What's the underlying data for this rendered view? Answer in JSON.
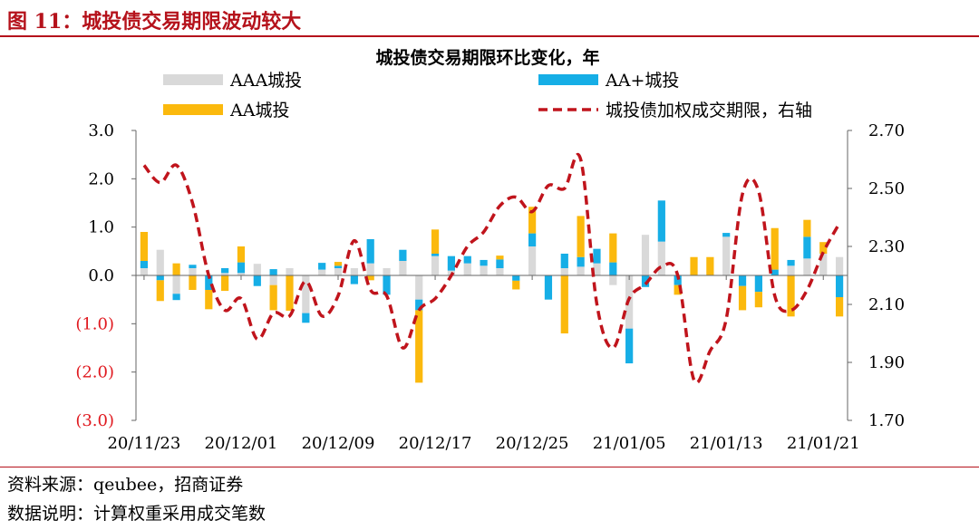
{
  "figure_title": "图 11：城投债交易期限波动较大",
  "footer": {
    "source": "资料来源：qeubee，招商证券",
    "note": "数据说明：计算权重采用成交笔数"
  },
  "colors": {
    "title_red": "#b5121b",
    "aaa": "#d9d9d9",
    "aa_plus": "#16aee6",
    "aa": "#fbb90d",
    "line": "#c0141c",
    "negative_tick": "#e0191f"
  },
  "chart_data": {
    "type": "bar",
    "title": "城投债交易期限环比变化，年",
    "stacked": true,
    "legend": {
      "entries": [
        "AAA城投",
        "AA+城投",
        "AA城投",
        "城投债加权成交期限，右轴"
      ],
      "placement": "top"
    },
    "ylim": [
      -3.0,
      3.0
    ],
    "y_ticks": [
      "(3.0)",
      "(2.0)",
      "(1.0)",
      "0.0",
      "1.0",
      "2.0",
      "3.0"
    ],
    "y2lim": [
      1.7,
      2.7
    ],
    "y2_ticks": [
      "1.70",
      "1.90",
      "2.10",
      "2.30",
      "2.50",
      "2.70"
    ],
    "x_tick_labels": [
      "20/11/23",
      "20/12/01",
      "20/12/09",
      "20/12/17",
      "20/12/25",
      "21/01/05",
      "21/01/13",
      "21/01/21"
    ],
    "x_tick_positions": [
      0,
      6,
      12,
      18,
      24,
      30,
      36,
      42
    ],
    "grid": false,
    "n_days": 44,
    "series": [
      {
        "name": "AAA城投",
        "values": [
          0.15,
          0.53,
          -0.38,
          0.15,
          0.0,
          0.05,
          0.05,
          0.24,
          -0.2,
          0.15,
          -0.78,
          0.12,
          0.15,
          0.15,
          0.25,
          0.15,
          0.3,
          -0.5,
          0.4,
          0.1,
          0.25,
          0.2,
          0.15,
          0.0,
          0.6,
          0.0,
          0.15,
          0.18,
          0.25,
          -0.2,
          -1.1,
          0.84,
          0.7,
          0.0,
          0.0,
          0.0,
          0.8,
          0.0,
          0.0,
          0.0,
          0.2,
          0.35,
          0.45,
          0.38
        ]
      },
      {
        "name": "AA+城投",
        "values": [
          0.15,
          -0.1,
          -0.13,
          0.07,
          -0.3,
          0.1,
          0.22,
          -0.22,
          0.13,
          0.0,
          -0.2,
          0.14,
          0.05,
          -0.18,
          0.5,
          -0.4,
          0.23,
          -0.22,
          0.05,
          0.3,
          0.15,
          0.12,
          0.18,
          -0.11,
          0.27,
          -0.5,
          0.3,
          0.2,
          0.3,
          0.27,
          -0.72,
          -0.24,
          0.85,
          -0.2,
          0.0,
          0.0,
          0.08,
          -0.22,
          -0.34,
          0.12,
          0.12,
          0.45,
          0.0,
          -0.45
        ]
      },
      {
        "name": "AA城投",
        "values": [
          0.6,
          -0.43,
          0.25,
          -0.3,
          -0.4,
          -0.32,
          0.33,
          0.0,
          -0.52,
          -0.73,
          0.0,
          0.0,
          0.08,
          0.0,
          -0.1,
          0.0,
          0.0,
          -1.5,
          0.5,
          0.0,
          0.0,
          0.0,
          0.08,
          -0.18,
          0.55,
          0.0,
          -1.2,
          0.85,
          0.0,
          0.6,
          0.0,
          0.0,
          0.0,
          -0.2,
          0.38,
          0.38,
          0.0,
          -0.5,
          -0.32,
          0.86,
          -0.85,
          0.35,
          0.24,
          -0.4
        ]
      }
    ],
    "line": {
      "name": "城投债加权成交期限，右轴",
      "axis": "right",
      "values": [
        2.58,
        2.52,
        2.58,
        2.45,
        2.2,
        2.08,
        2.12,
        1.98,
        2.07,
        2.06,
        2.18,
        2.06,
        2.13,
        2.32,
        2.15,
        2.13,
        1.95,
        2.08,
        2.12,
        2.2,
        2.3,
        2.35,
        2.44,
        2.47,
        2.42,
        2.51,
        2.5,
        2.6,
        2.1,
        1.95,
        2.12,
        2.17,
        2.23,
        2.2,
        1.84,
        1.94,
        2.05,
        2.48,
        2.49,
        2.13,
        2.08,
        2.15,
        2.28,
        2.38
      ]
    }
  }
}
